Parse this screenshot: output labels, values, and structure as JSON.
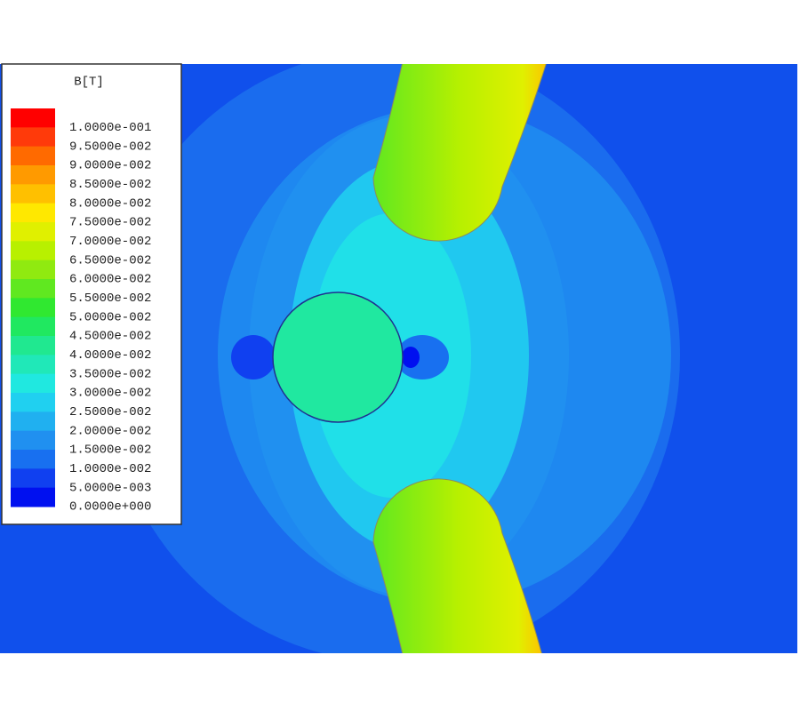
{
  "legend": {
    "title": "B[T]",
    "entries": [
      {
        "label": "1.0000e-001",
        "color": "#ff0000"
      },
      {
        "label": "9.5000e-002",
        "color": "#ff3a0a"
      },
      {
        "label": "9.0000e-002",
        "color": "#ff6a00"
      },
      {
        "label": "8.5000e-002",
        "color": "#ff9a00"
      },
      {
        "label": "8.0000e-002",
        "color": "#ffc000"
      },
      {
        "label": "7.5000e-002",
        "color": "#ffe800"
      },
      {
        "label": "7.0000e-002",
        "color": "#e0f000"
      },
      {
        "label": "6.5000e-002",
        "color": "#b8f000"
      },
      {
        "label": "6.0000e-002",
        "color": "#90ea10"
      },
      {
        "label": "5.5000e-002",
        "color": "#60e820"
      },
      {
        "label": "5.0000e-002",
        "color": "#30e830"
      },
      {
        "label": "4.5000e-002",
        "color": "#20e860"
      },
      {
        "label": "4.0000e-002",
        "color": "#20e890"
      },
      {
        "label": "3.5000e-002",
        "color": "#20e8b8"
      },
      {
        "label": "3.0000e-002",
        "color": "#20e8e0"
      },
      {
        "label": "2.5000e-002",
        "color": "#20d0f0"
      },
      {
        "label": "2.0000e-002",
        "color": "#20b0f0"
      },
      {
        "label": "1.5000e-002",
        "color": "#2090f0"
      },
      {
        "label": "1.0000e-002",
        "color": "#1870f0"
      },
      {
        "label": "5.0000e-003",
        "color": "#1040f0"
      },
      {
        "label": "0.0000e+000",
        "color": "#0010f0"
      }
    ]
  }
}
